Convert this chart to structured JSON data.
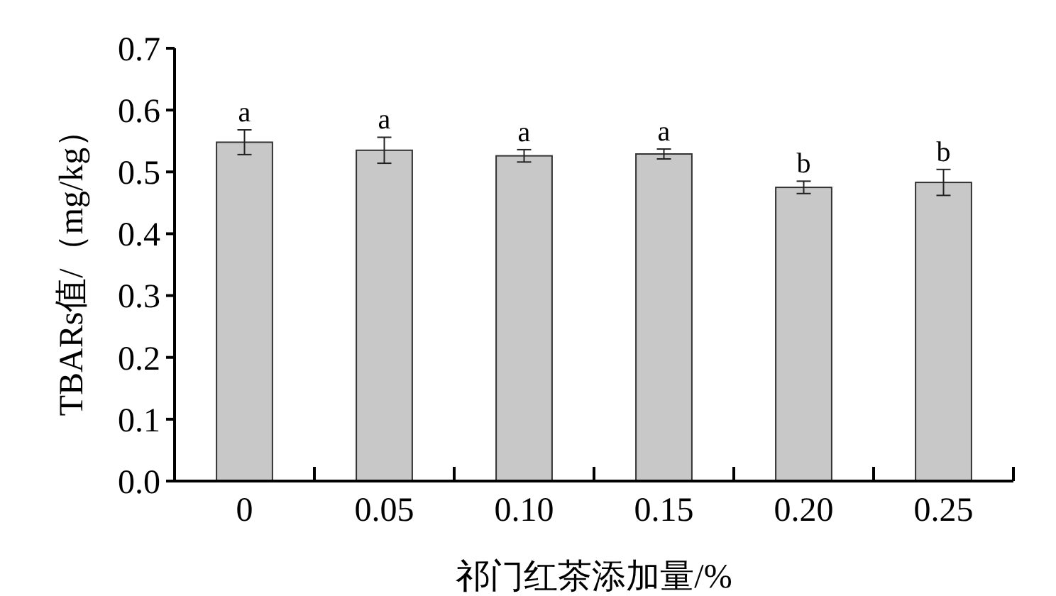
{
  "chart_data": {
    "type": "bar",
    "xlabel": "祁门红茶添加量/%",
    "ylabel": "TBARs值/（mg/kg）",
    "categories": [
      "0",
      "0.05",
      "0.10",
      "0.15",
      "0.20",
      "0.25"
    ],
    "values": [
      0.548,
      0.535,
      0.526,
      0.529,
      0.475,
      0.483
    ],
    "errors": [
      0.02,
      0.021,
      0.01,
      0.008,
      0.01,
      0.021
    ],
    "color": "#c8c8c8",
    "ylim": [
      0,
      0.7
    ],
    "yticks": [
      {
        "value": 0,
        "label": "0.0"
      },
      0.1,
      0.2,
      0.3,
      0.4,
      0.5,
      0.6,
      0.7
    ],
    "annotations": [
      {
        "text": "a",
        "x": "0",
        "y": 0.568
      },
      {
        "text": "a",
        "x": "0.05",
        "y": 0.556
      },
      {
        "text": "a",
        "x": "0.10",
        "y": 0.536
      },
      {
        "text": "a",
        "x": "0.15",
        "y": 0.537
      },
      {
        "text": "b",
        "x": "0.20",
        "y": 0.485
      },
      {
        "text": "b",
        "x": "0.25",
        "y": 0.504
      }
    ],
    "grid": false
  }
}
